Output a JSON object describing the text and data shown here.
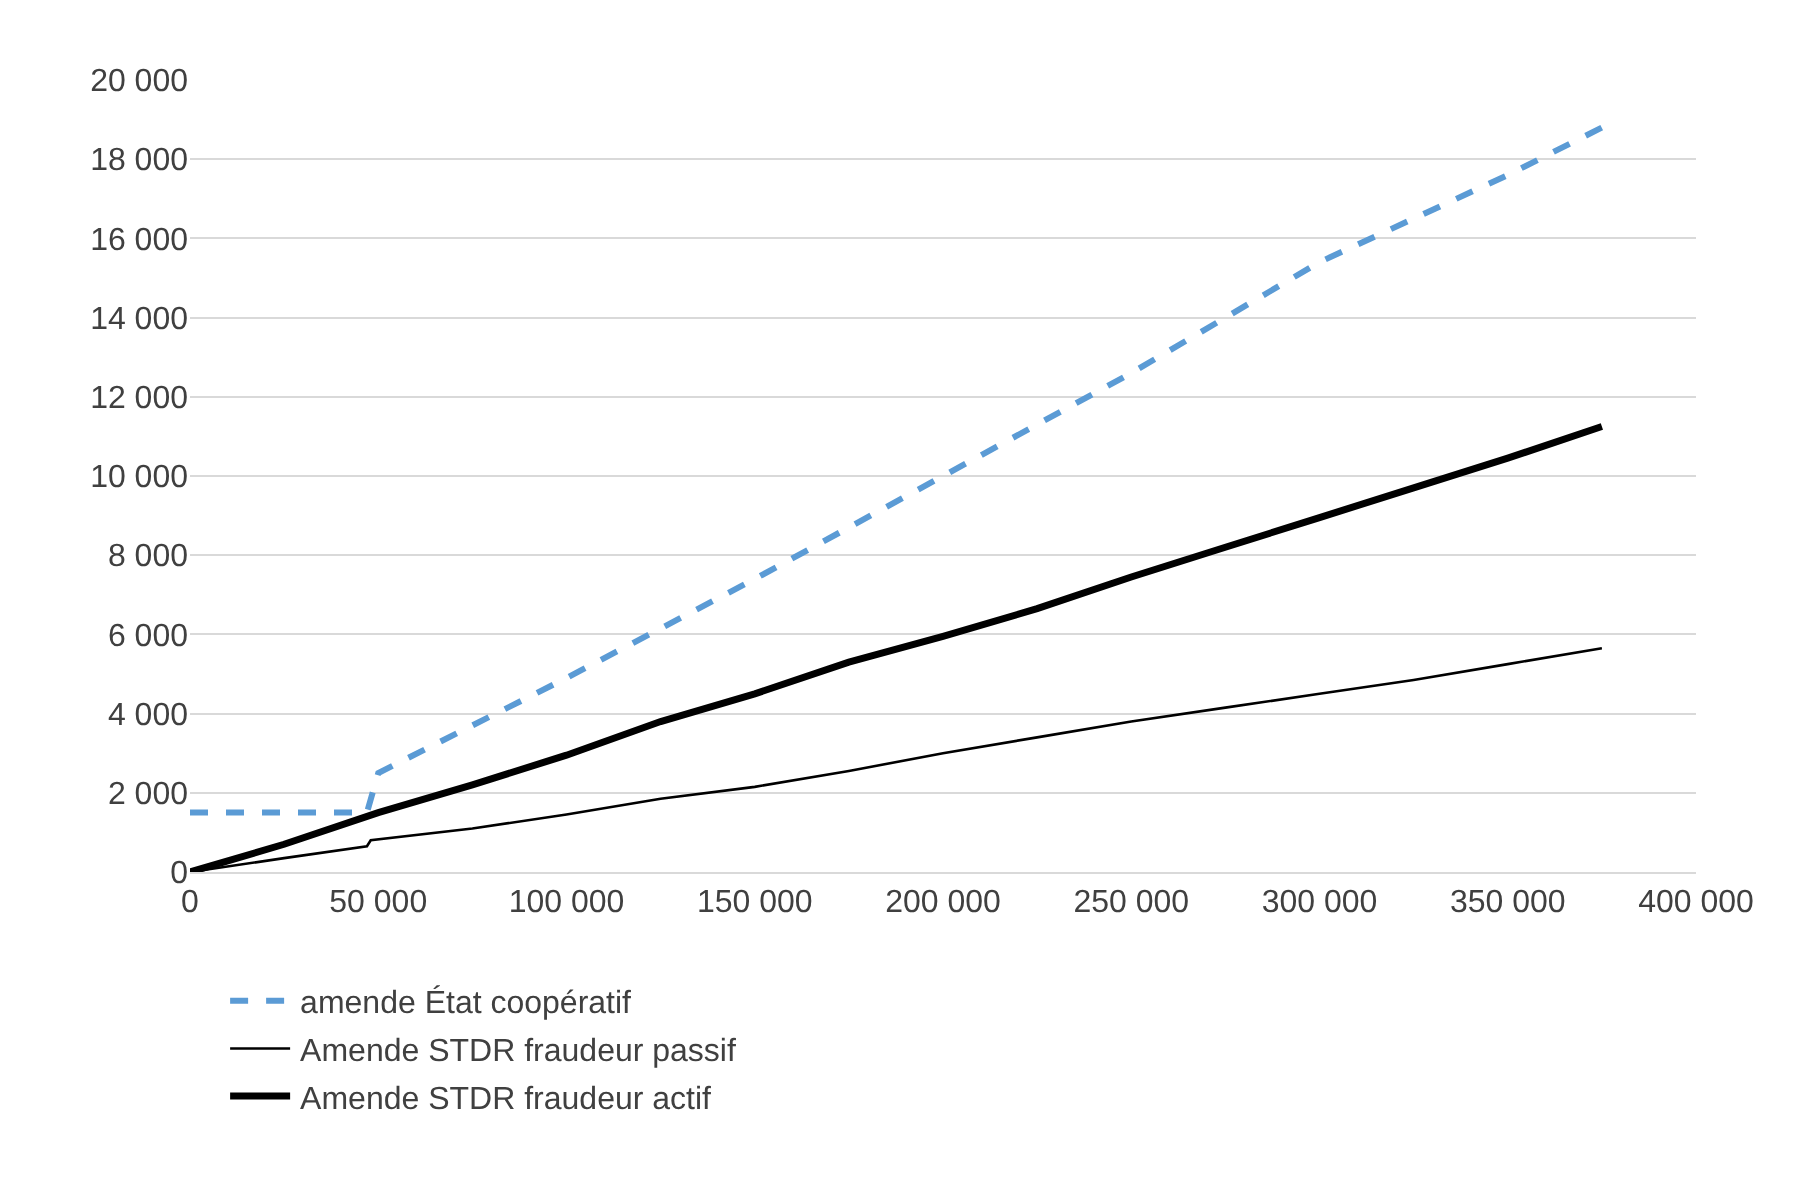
{
  "chart_data": {
    "type": "line",
    "xlim": [
      0,
      400000
    ],
    "ylim": [
      0,
      20000
    ],
    "xticks": [
      0,
      {
        "value": 50000,
        "label": "50 000"
      },
      {
        "value": 100000,
        "label": "100 000"
      },
      {
        "value": 150000,
        "label": "150 000"
      },
      {
        "value": 200000,
        "label": "200 000"
      },
      {
        "value": 250000,
        "label": "250 000"
      },
      {
        "value": 300000,
        "label": "300 000"
      },
      {
        "value": 350000,
        "label": "350 000"
      },
      {
        "value": 400000,
        "label": "400 000"
      }
    ],
    "yticks": [
      0,
      {
        "value": 2000,
        "label": "2 000"
      },
      {
        "value": 4000,
        "label": "4 000"
      },
      {
        "value": 6000,
        "label": "6 000"
      },
      {
        "value": 8000,
        "label": "8 000"
      },
      {
        "value": 10000,
        "label": "10 000"
      },
      {
        "value": 12000,
        "label": "12 000"
      },
      {
        "value": 14000,
        "label": "14 000"
      },
      {
        "value": 16000,
        "label": "16 000"
      },
      {
        "value": 18000,
        "label": "18 000"
      },
      {
        "value": 20000,
        "label": "20 000"
      }
    ],
    "grid": "y",
    "legend": "bottom",
    "marker": "none",
    "series": [
      {
        "name": "amende État coopératif",
        "color": "#5b9bd5",
        "line_style": "dashed",
        "x": [
          0,
          47000,
          50000,
          75000,
          100000,
          150000,
          200000,
          250000,
          300000,
          350000,
          375000
        ],
        "values": [
          1500,
          1500,
          2500,
          3700,
          4900,
          7400,
          10000,
          12600,
          15400,
          17600,
          18800
        ]
      },
      {
        "name": "Amende STDR fraudeur passif",
        "color": "#000000",
        "line_style": "solid",
        "x": [
          0,
          25000,
          47000,
          48000,
          75000,
          100000,
          125000,
          150000,
          175000,
          200000,
          225000,
          250000,
          275000,
          300000,
          325000,
          350000,
          375000
        ],
        "values": [
          0,
          350,
          650,
          800,
          1100,
          1450,
          1850,
          2150,
          2550,
          3000,
          3400,
          3800,
          4150,
          4500,
          4850,
          5250,
          5650
        ]
      },
      {
        "name": "Amende STDR fraudeur actif",
        "color": "#000000",
        "line_style": "solid",
        "x": [
          0,
          25000,
          50000,
          75000,
          100000,
          125000,
          150000,
          175000,
          200000,
          225000,
          250000,
          275000,
          300000,
          325000,
          350000,
          375000
        ],
        "values": [
          0,
          700,
          1500,
          2200,
          2950,
          3800,
          4500,
          5300,
          5950,
          6650,
          7450,
          8200,
          8950,
          9700,
          10450,
          11250
        ]
      }
    ]
  }
}
